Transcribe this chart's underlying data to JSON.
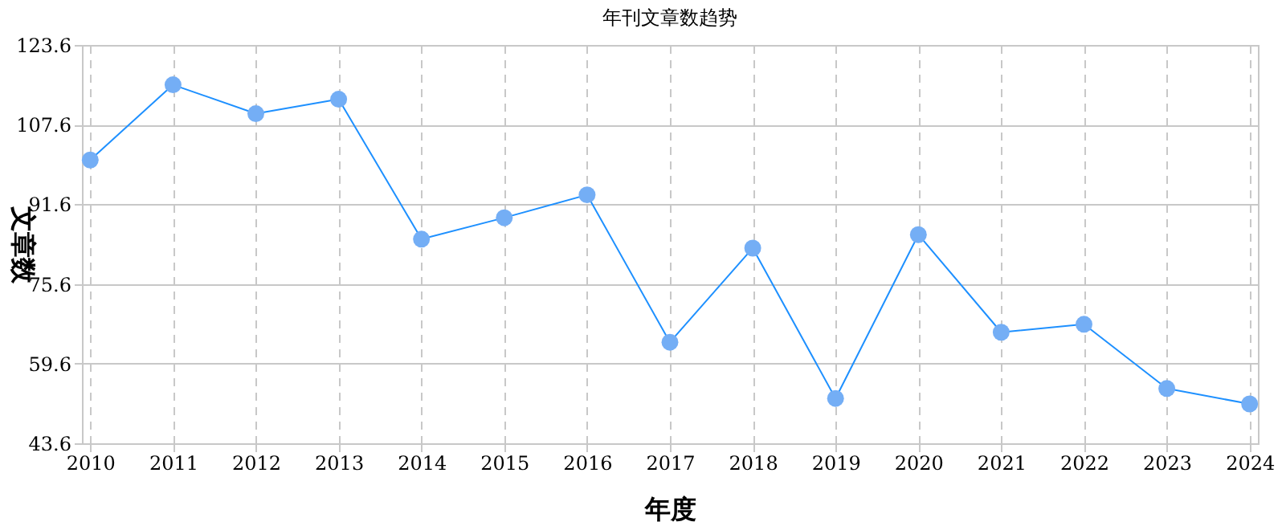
{
  "chart_data": {
    "type": "line",
    "title": "年刊文章数趋势",
    "xlabel": "年度",
    "ylabel": "文章数",
    "categories": [
      "2010",
      "2011",
      "2012",
      "2013",
      "2014",
      "2015",
      "2016",
      "2017",
      "2018",
      "2019",
      "2020",
      "2021",
      "2022",
      "2023",
      "2024"
    ],
    "series": [
      {
        "color": "#1e90ff",
        "values": [
          100.5,
          115.6,
          109.8,
          112.7,
          84.6,
          88.9,
          93.5,
          63.9,
          82.8,
          52.6,
          85.5,
          65.9,
          67.5,
          54.6,
          51.5
        ]
      }
    ],
    "ylim": [
      43.6,
      123.6
    ],
    "yticks": [
      43.6,
      59.6,
      75.6,
      91.6,
      107.6,
      123.6
    ],
    "grid": true,
    "marker": "circle",
    "line_style": "solid"
  }
}
